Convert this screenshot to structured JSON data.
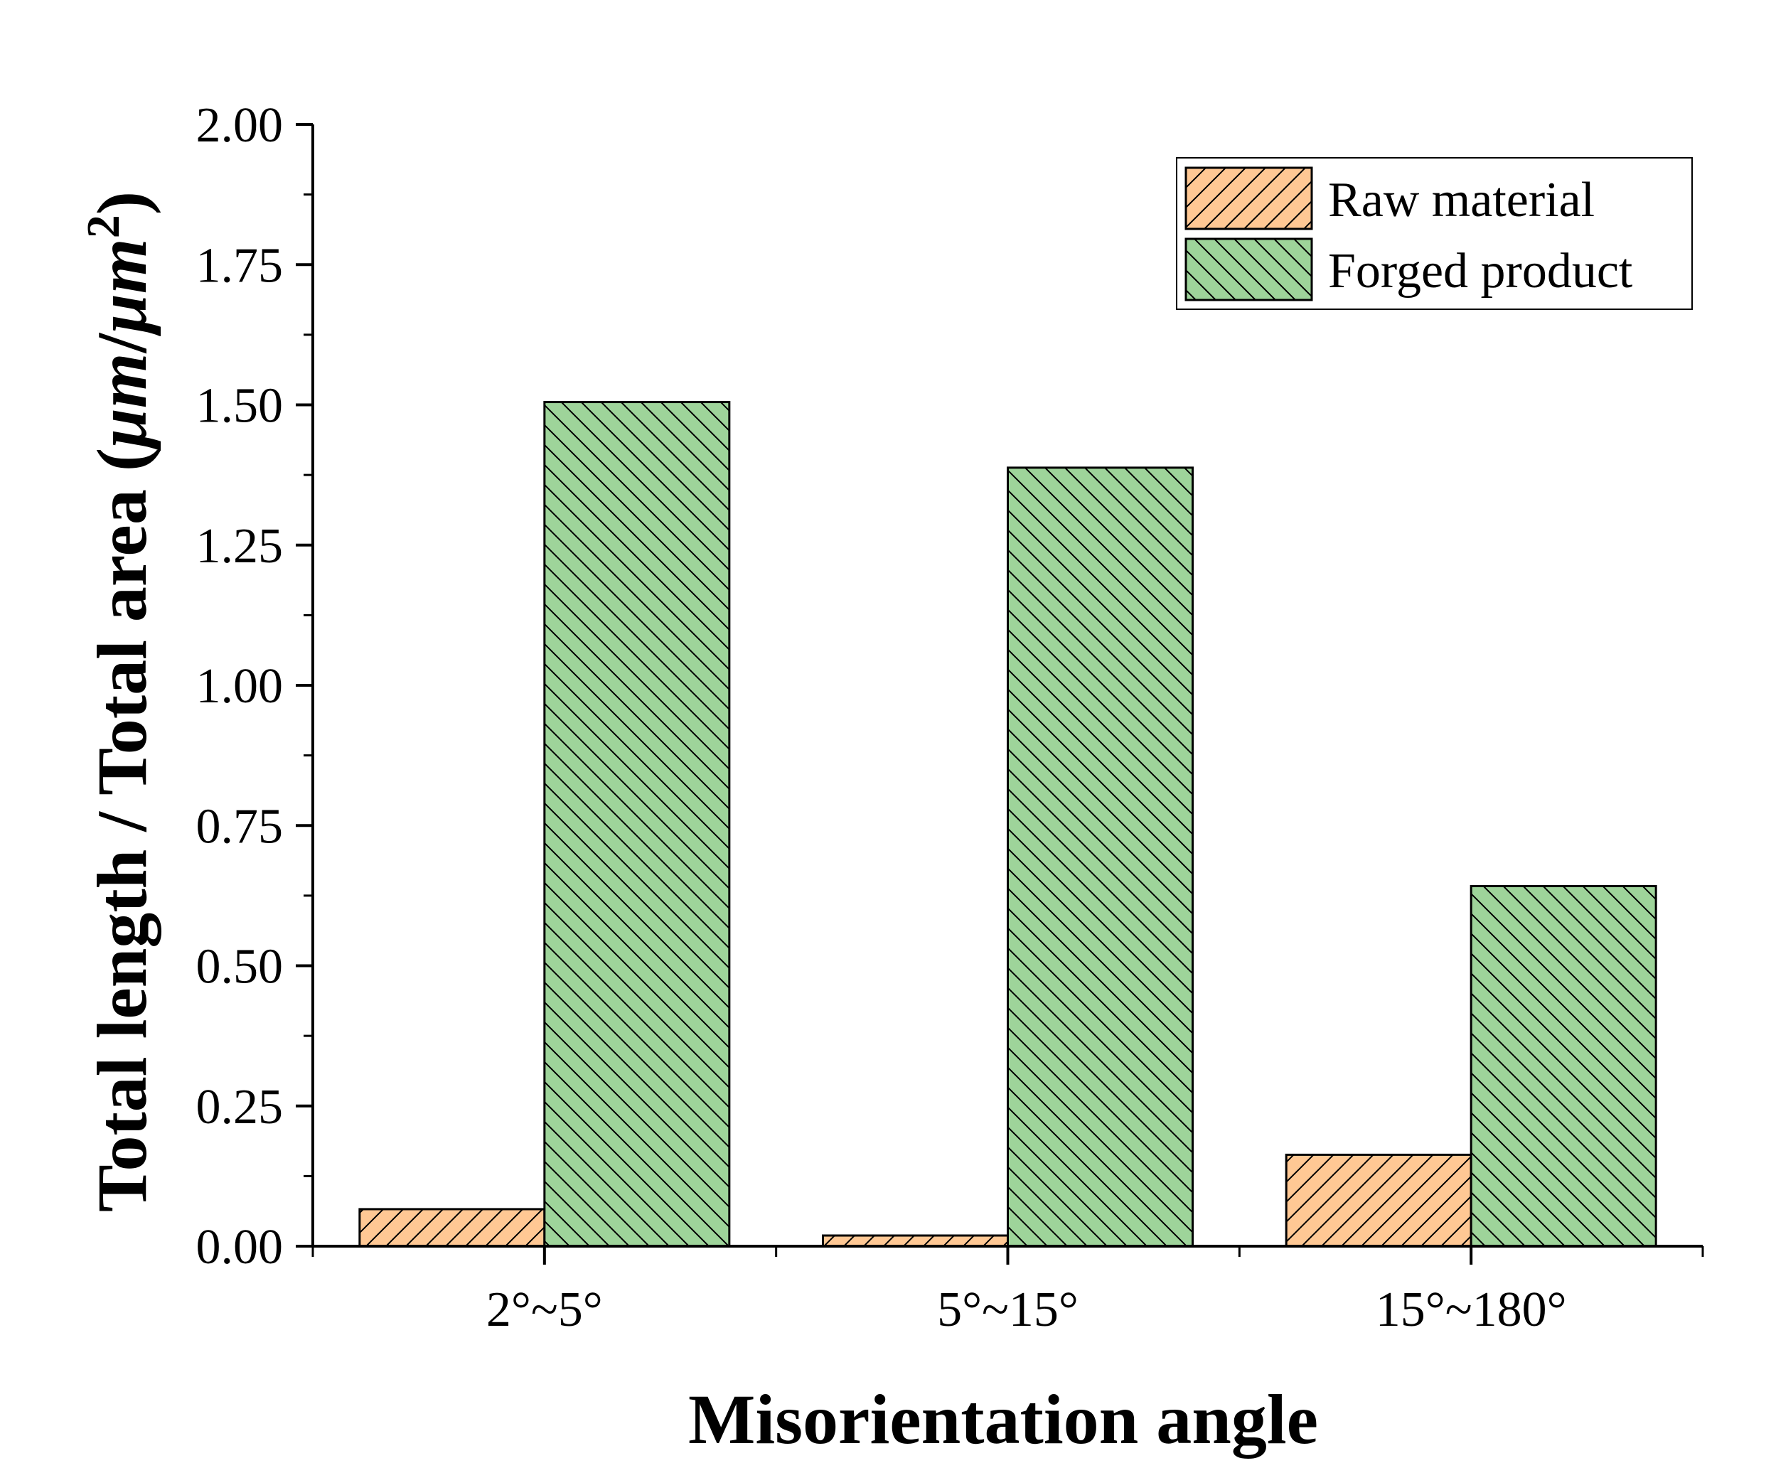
{
  "chart_data": {
    "type": "bar",
    "title": "",
    "xlabel": "Misorientation angle",
    "ylabel_main": "Total length / Total area (",
    "ylabel_unit_um": "μm",
    "ylabel_unit_sep": "/",
    "ylabel_unit_um2": "μm",
    "ylabel_unit_sup": "2",
    "ylabel_close": ")",
    "categories": [
      "2°~5°",
      "5°~15°",
      "15°~180°"
    ],
    "series": [
      {
        "name": "Raw material",
        "values": [
          0.066,
          0.019,
          0.163
        ],
        "color": "#FFC894",
        "hatch": "forward"
      },
      {
        "name": "Forged product",
        "values": [
          1.505,
          1.388,
          0.642
        ],
        "color": "#9ED49A",
        "hatch": "backward"
      }
    ],
    "ylim": [
      0,
      2.0
    ],
    "yticks": [
      "0.00",
      "0.25",
      "0.50",
      "0.75",
      "1.00",
      "1.25",
      "1.50",
      "1.75",
      "2.00"
    ],
    "ytick_values": [
      0,
      0.25,
      0.5,
      0.75,
      1.0,
      1.25,
      1.5,
      1.75,
      2.0
    ],
    "legend_position": "top-right",
    "grid": false
  }
}
